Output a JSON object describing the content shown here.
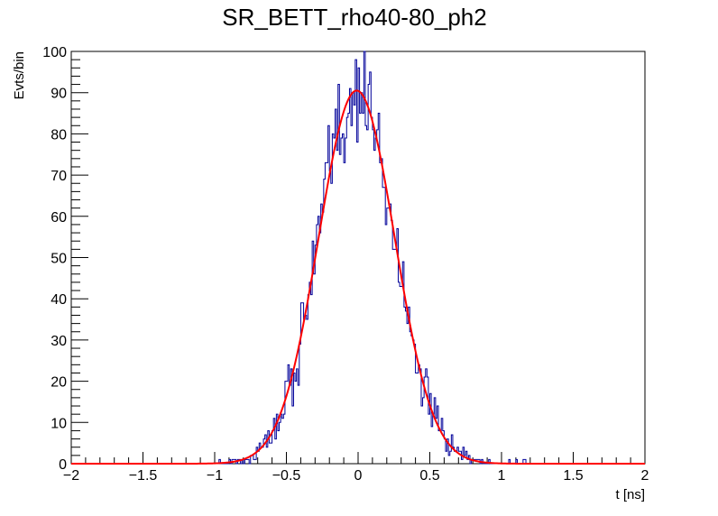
{
  "chart_data": {
    "type": "histogram",
    "title": "SR_BETT_rho40-80_ph2",
    "xlabel": "t [ns]",
    "ylabel": "Evts/bin",
    "xlim": [
      -2,
      2
    ],
    "ylim": [
      0,
      100
    ],
    "x_ticks": [
      -2,
      -1.5,
      -1,
      -0.5,
      0,
      0.5,
      1,
      1.5,
      2
    ],
    "x_tick_labels": [
      "−2",
      "−1.5",
      "−1",
      "−0.5",
      "0",
      "0.5",
      "1",
      "1.5",
      "2"
    ],
    "y_ticks": [
      0,
      10,
      20,
      30,
      40,
      50,
      60,
      70,
      80,
      90,
      100
    ],
    "y_tick_labels": [
      "0",
      "10",
      "20",
      "30",
      "40",
      "50",
      "60",
      "70",
      "80",
      "90",
      "100"
    ],
    "grid": false,
    "legend": "none",
    "histogram": {
      "bin_width": 0.01,
      "peak_counts": 100,
      "description_of_shape": "approximately gaussian distribution of event times centered near 0 ns"
    },
    "fit": {
      "type": "gaussian",
      "amplitude": 90.5,
      "mean": -0.01,
      "sigma": 0.265
    },
    "colors": {
      "histogram": "#000099",
      "fit": "#ff0000",
      "axes": "#000000"
    }
  }
}
